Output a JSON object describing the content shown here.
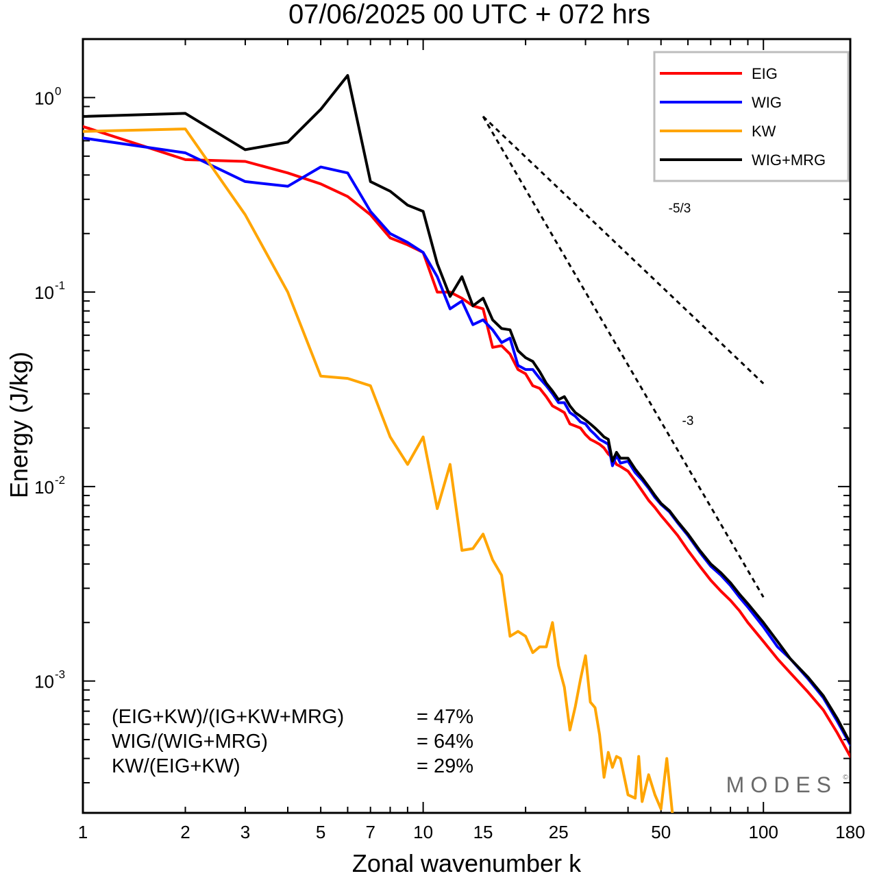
{
  "title": "07/06/2025  00 UTC  + 072 hrs",
  "chart_data": {
    "type": "line",
    "xlabel": "Zonal wavenumber k",
    "ylabel": "Energy (J/kg)",
    "xscale": "log",
    "yscale": "log",
    "xlim": [
      1,
      180
    ],
    "ylim": [
      0.00021,
      2.0
    ],
    "x_ticks": [
      "1",
      "2",
      "3",
      "5",
      "7",
      "10",
      "15",
      "25",
      "50",
      "100",
      "180"
    ],
    "y_ticks": [
      {
        "base": "10",
        "exp": "-3",
        "value": 0.001
      },
      {
        "base": "10",
        "exp": "-2",
        "value": 0.01
      },
      {
        "base": "10",
        "exp": "-1",
        "value": 0.1
      },
      {
        "base": "10",
        "exp": "0",
        "value": 1
      }
    ],
    "grid": false,
    "legend_position": "top-right",
    "series": [
      {
        "name": "EIG",
        "color": "#ff0000",
        "points": [
          [
            1,
            0.71
          ],
          [
            2,
            0.48
          ],
          [
            3,
            0.47
          ],
          [
            4,
            0.41
          ],
          [
            5,
            0.36
          ],
          [
            6,
            0.31
          ],
          [
            7,
            0.25
          ],
          [
            8,
            0.19
          ],
          [
            9,
            0.175
          ],
          [
            10,
            0.16
          ],
          [
            11,
            0.1
          ],
          [
            12,
            0.1
          ],
          [
            13,
            0.093
          ],
          [
            14,
            0.085
          ],
          [
            15,
            0.082
          ],
          [
            16,
            0.052
          ],
          [
            17,
            0.053
          ],
          [
            18,
            0.048
          ],
          [
            19,
            0.04
          ],
          [
            20,
            0.038
          ],
          [
            21,
            0.033
          ],
          [
            22,
            0.032
          ],
          [
            23,
            0.029
          ],
          [
            24,
            0.026
          ],
          [
            25,
            0.025
          ],
          [
            26,
            0.024
          ],
          [
            27,
            0.021
          ],
          [
            28,
            0.0205
          ],
          [
            29,
            0.02
          ],
          [
            30,
            0.0185
          ],
          [
            31,
            0.0175
          ],
          [
            32,
            0.017
          ],
          [
            33,
            0.0165
          ],
          [
            34,
            0.0158
          ],
          [
            35,
            0.0147
          ],
          [
            36,
            0.0141
          ],
          [
            37,
            0.013
          ],
          [
            38,
            0.0127
          ],
          [
            40,
            0.012
          ],
          [
            42,
            0.0107
          ],
          [
            44,
            0.0095
          ],
          [
            46,
            0.0085
          ],
          [
            48,
            0.0078
          ],
          [
            50,
            0.0071
          ],
          [
            53,
            0.0063
          ],
          [
            56,
            0.0056
          ],
          [
            60,
            0.0047
          ],
          [
            65,
            0.0039
          ],
          [
            70,
            0.0033
          ],
          [
            75,
            0.0029
          ],
          [
            80,
            0.0026
          ],
          [
            85,
            0.0023
          ],
          [
            90,
            0.002
          ],
          [
            100,
            0.0016
          ],
          [
            110,
            0.0013
          ],
          [
            120,
            0.0011
          ],
          [
            135,
            0.00088
          ],
          [
            150,
            0.00071
          ],
          [
            165,
            0.00054
          ],
          [
            180,
            0.00041
          ]
        ]
      },
      {
        "name": "WIG",
        "color": "#0000ff",
        "points": [
          [
            1,
            0.62
          ],
          [
            2,
            0.52
          ],
          [
            3,
            0.37
          ],
          [
            4,
            0.35
          ],
          [
            5,
            0.44
          ],
          [
            6,
            0.41
          ],
          [
            7,
            0.26
          ],
          [
            8,
            0.2
          ],
          [
            9,
            0.18
          ],
          [
            10,
            0.16
          ],
          [
            11,
            0.12
          ],
          [
            12,
            0.082
          ],
          [
            13,
            0.09
          ],
          [
            14,
            0.068
          ],
          [
            15,
            0.072
          ],
          [
            16,
            0.064
          ],
          [
            17,
            0.055
          ],
          [
            18,
            0.058
          ],
          [
            19,
            0.042
          ],
          [
            20,
            0.04
          ],
          [
            21,
            0.04
          ],
          [
            22,
            0.036
          ],
          [
            23,
            0.033
          ],
          [
            24,
            0.03
          ],
          [
            25,
            0.027
          ],
          [
            26,
            0.027
          ],
          [
            27,
            0.024
          ],
          [
            28,
            0.023
          ],
          [
            29,
            0.0215
          ],
          [
            30,
            0.021
          ],
          [
            31,
            0.0195
          ],
          [
            32,
            0.0185
          ],
          [
            33,
            0.0175
          ],
          [
            34,
            0.017
          ],
          [
            35,
            0.0165
          ],
          [
            36,
            0.0128
          ],
          [
            37,
            0.0145
          ],
          [
            38,
            0.0132
          ],
          [
            40,
            0.0135
          ],
          [
            42,
            0.0118
          ],
          [
            44,
            0.0108
          ],
          [
            46,
            0.0098
          ],
          [
            48,
            0.0088
          ],
          [
            50,
            0.0081
          ],
          [
            53,
            0.0074
          ],
          [
            56,
            0.0065
          ],
          [
            60,
            0.0056
          ],
          [
            65,
            0.0046
          ],
          [
            70,
            0.0039
          ],
          [
            75,
            0.0035
          ],
          [
            80,
            0.0031
          ],
          [
            85,
            0.0027
          ],
          [
            90,
            0.0024
          ],
          [
            100,
            0.0019
          ],
          [
            110,
            0.0015
          ],
          [
            120,
            0.0013
          ],
          [
            135,
            0.00103
          ],
          [
            150,
            0.00082
          ],
          [
            165,
            0.00062
          ],
          [
            180,
            0.00047
          ]
        ]
      },
      {
        "name": "KW",
        "color": "#ffa500",
        "points": [
          [
            1,
            0.67
          ],
          [
            2,
            0.69
          ],
          [
            3,
            0.25
          ],
          [
            4,
            0.1
          ],
          [
            5,
            0.037
          ],
          [
            6,
            0.036
          ],
          [
            7,
            0.033
          ],
          [
            8,
            0.018
          ],
          [
            9,
            0.013
          ],
          [
            10,
            0.018
          ],
          [
            11,
            0.0077
          ],
          [
            12,
            0.013
          ],
          [
            13,
            0.0047
          ],
          [
            14,
            0.0048
          ],
          [
            15,
            0.0057
          ],
          [
            16,
            0.0042
          ],
          [
            17,
            0.0035
          ],
          [
            18,
            0.0017
          ],
          [
            19,
            0.0018
          ],
          [
            20,
            0.0017
          ],
          [
            21,
            0.0014
          ],
          [
            22,
            0.0015
          ],
          [
            23,
            0.0015
          ],
          [
            24,
            0.002
          ],
          [
            25,
            0.0012
          ],
          [
            26,
            0.00093
          ],
          [
            27,
            0.00056
          ],
          [
            28,
            0.00074
          ],
          [
            29,
            0.00102
          ],
          [
            30,
            0.00135
          ],
          [
            31,
            0.00078
          ],
          [
            32,
            0.00073
          ],
          [
            33,
            0.00053
          ],
          [
            34,
            0.00032
          ],
          [
            35,
            0.00043
          ],
          [
            36,
            0.00036
          ],
          [
            37,
            0.00041
          ],
          [
            38,
            0.0004
          ],
          [
            40,
            0.00026
          ],
          [
            42,
            0.00025
          ],
          [
            43,
            0.00041
          ],
          [
            44,
            0.00024
          ],
          [
            46,
            0.00033
          ],
          [
            48,
            0.00026
          ],
          [
            50,
            0.00022
          ],
          [
            52,
            0.0004
          ],
          [
            54,
            0.00021
          ]
        ]
      },
      {
        "name": "WIG+MRG",
        "color": "#000000",
        "points": [
          [
            1,
            0.8
          ],
          [
            2,
            0.83
          ],
          [
            3,
            0.54
          ],
          [
            4,
            0.59
          ],
          [
            5,
            0.87
          ],
          [
            6,
            1.3
          ],
          [
            7,
            0.37
          ],
          [
            8,
            0.33
          ],
          [
            9,
            0.28
          ],
          [
            10,
            0.26
          ],
          [
            11,
            0.14
          ],
          [
            12,
            0.095
          ],
          [
            13,
            0.12
          ],
          [
            14,
            0.085
          ],
          [
            15,
            0.093
          ],
          [
            16,
            0.072
          ],
          [
            17,
            0.065
          ],
          [
            18,
            0.064
          ],
          [
            19,
            0.05
          ],
          [
            20,
            0.046
          ],
          [
            21,
            0.044
          ],
          [
            22,
            0.039
          ],
          [
            23,
            0.034
          ],
          [
            24,
            0.031
          ],
          [
            25,
            0.028
          ],
          [
            26,
            0.029
          ],
          [
            27,
            0.026
          ],
          [
            28,
            0.024
          ],
          [
            29,
            0.023
          ],
          [
            30,
            0.022
          ],
          [
            31,
            0.021
          ],
          [
            32,
            0.02
          ],
          [
            33,
            0.019
          ],
          [
            34,
            0.018
          ],
          [
            35,
            0.0175
          ],
          [
            36,
            0.0135
          ],
          [
            37,
            0.015
          ],
          [
            38,
            0.014
          ],
          [
            40,
            0.014
          ],
          [
            42,
            0.0123
          ],
          [
            44,
            0.0111
          ],
          [
            46,
            0.01
          ],
          [
            48,
            0.009
          ],
          [
            50,
            0.0082
          ],
          [
            53,
            0.0075
          ],
          [
            56,
            0.0066
          ],
          [
            60,
            0.0057
          ],
          [
            65,
            0.0047
          ],
          [
            70,
            0.004
          ],
          [
            75,
            0.0036
          ],
          [
            80,
            0.0032
          ],
          [
            85,
            0.0028
          ],
          [
            90,
            0.0025
          ],
          [
            100,
            0.002
          ],
          [
            110,
            0.0016
          ],
          [
            120,
            0.0013
          ],
          [
            135,
            0.00105
          ],
          [
            150,
            0.00084
          ],
          [
            165,
            0.00064
          ],
          [
            180,
            0.00048
          ]
        ]
      }
    ],
    "reference_lines": [
      {
        "label": "-5/3",
        "slope": -1.6667,
        "x_start": 15,
        "x_end": 100,
        "y_start": 0.8
      },
      {
        "label": "-3",
        "slope": -3,
        "x_start": 15,
        "x_end": 100,
        "y_start": 0.8
      }
    ],
    "annotations": [
      {
        "label": "(EIG+KW)/(IG+KW+MRG)",
        "value": "= 47%"
      },
      {
        "label": "WIG/(WIG+MRG)",
        "value": "= 64%"
      },
      {
        "label": "KW/(EIG+KW)",
        "value": "= 29%"
      }
    ]
  },
  "logo": {
    "text": "MODES",
    "mark": "©"
  }
}
